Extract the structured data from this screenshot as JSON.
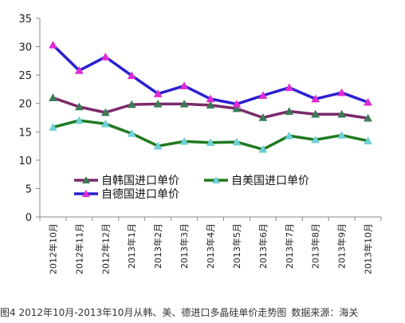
{
  "caption": {
    "figure_text": "图4 2012年10月-2013年10月从韩、美、德进口多晶硅单价走势图",
    "source_text": "数据来源：海关"
  },
  "colors": {
    "korea_line": "#7b2a6a",
    "korea_marker": "#3a7a55",
    "germany_line": "#2a1fd0",
    "germany_marker": "#e02ad6",
    "usa_line": "#1f7a1f",
    "usa_marker": "#6fd0d8",
    "axis": "#888888"
  },
  "chart_data": {
    "type": "line",
    "title": "",
    "xlabel": "",
    "ylabel": "",
    "categories": [
      "2012年10月",
      "2012年11月",
      "2012年12月",
      "2013年1月",
      "2013年2月",
      "2013年3月",
      "2013年4月",
      "2013年5月",
      "2013年6月",
      "2013年7月",
      "2013年8月",
      "2013年9月",
      "2013年10月"
    ],
    "ylim": [
      0,
      35
    ],
    "yticks": [
      0,
      5,
      10,
      15,
      20,
      25,
      30,
      35
    ],
    "grid": false,
    "legend_position": "bottom-inside",
    "series": [
      {
        "name": "自韩国进口单价",
        "values": [
          21.0,
          19.4,
          18.4,
          19.8,
          19.9,
          19.9,
          19.7,
          19.1,
          17.5,
          18.6,
          18.1,
          18.1,
          17.4
        ],
        "line_color": "#7b2a6a",
        "marker_color": "#3a7a55",
        "marker": "triangle"
      },
      {
        "name": "自美国进口单价",
        "values": [
          15.8,
          17.0,
          16.4,
          14.7,
          12.5,
          13.3,
          13.1,
          13.2,
          11.9,
          14.3,
          13.6,
          14.4,
          13.4
        ],
        "line_color": "#1f7a1f",
        "marker_color": "#6fd0d8",
        "marker": "triangle"
      },
      {
        "name": "自德国进口单价",
        "values": [
          30.3,
          25.8,
          28.2,
          24.9,
          21.7,
          23.1,
          20.8,
          19.9,
          21.4,
          22.8,
          20.8,
          21.9,
          20.2
        ],
        "line_color": "#2a1fd0",
        "marker_color": "#e02ad6",
        "marker": "triangle"
      }
    ]
  }
}
